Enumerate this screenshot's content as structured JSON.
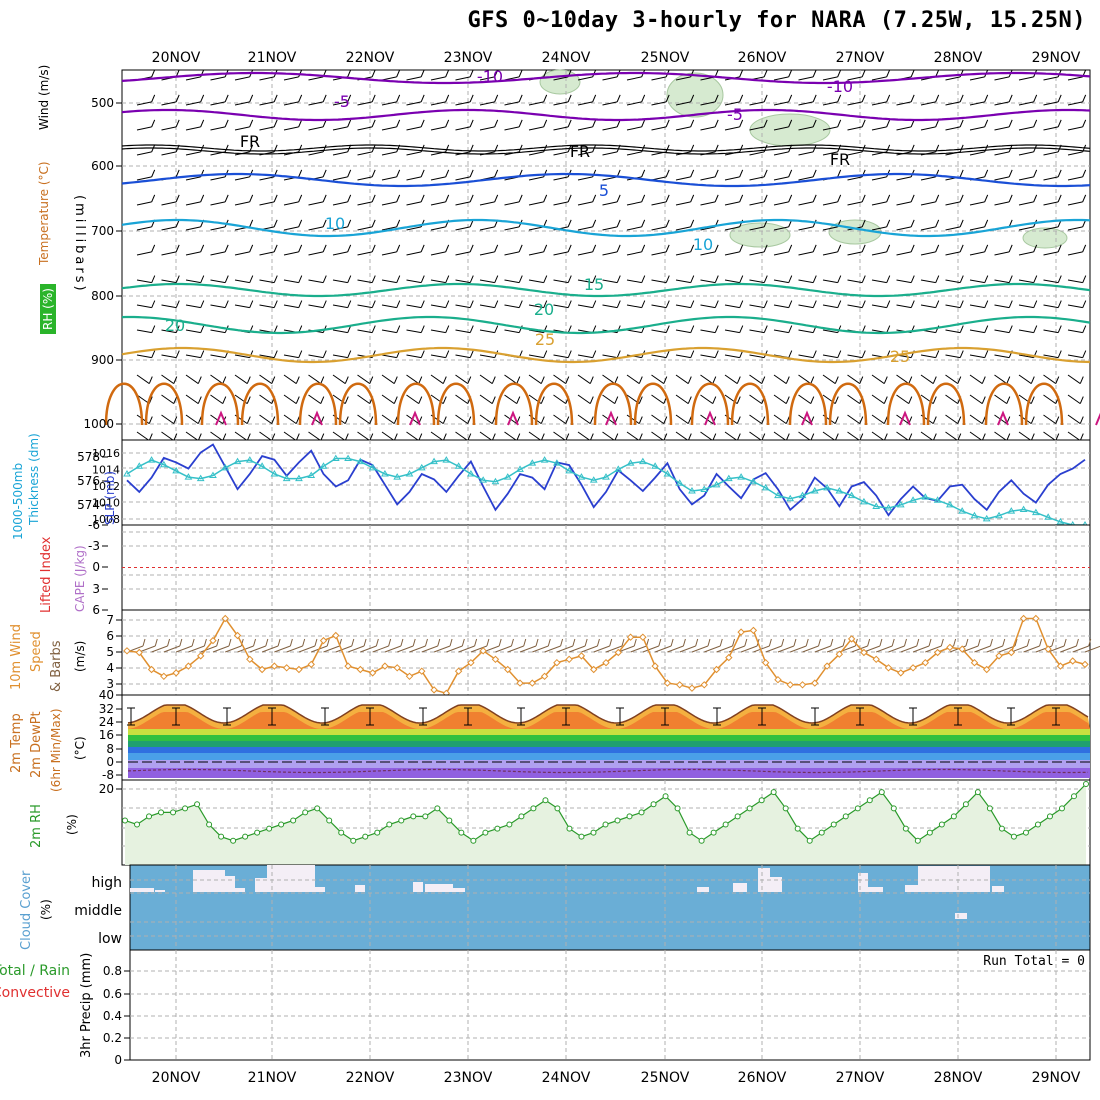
{
  "title": "GFS 0~10day 3-hourly for NARA (7.25W, 15.25N)",
  "colors": {
    "temp_cold": "#7a00b0",
    "temp_mid": "#1a4fd6",
    "temp_cool": "#19a4d6",
    "temp_warm": "#1aae8c",
    "temp_hot": "#d9a030",
    "temp_vhot": "#d06a10",
    "temp_max": "#cc1680",
    "freezing": "#000000",
    "rh_fill": "#d6ead0",
    "rh_line": "#2a9a2a",
    "slp": "#2a3fcf",
    "thickness": "#35c0c8",
    "lifted": "#e03030",
    "wind10": "#e09030",
    "barb": "#806040",
    "cloud_bg": "#6aaed6",
    "cloud_fill": "#f4eef6",
    "grid": "#b0b0b0"
  },
  "dates": [
    "20NOV",
    "21NOV",
    "22NOV",
    "23NOV",
    "24NOV",
    "25NOV",
    "26NOV",
    "27NOV",
    "28NOV",
    "29NOV"
  ],
  "panels": {
    "upper": {
      "ylabel_wind": "Wind (m/s)",
      "ylabel_temp": "Temperature (°C)",
      "ylabel_rh": "RH (%)",
      "ylabel_mb": "(millibars)",
      "yticks": [
        "500",
        "600",
        "700",
        "800",
        "900",
        "1000"
      ],
      "contour_labels": [
        "-10",
        "-10",
        "-5",
        "-5",
        "FR",
        "FR",
        "FR",
        "5",
        "5",
        "10",
        "10",
        "15",
        "20",
        "20",
        "25",
        "25",
        "10",
        "10",
        "30",
        "10",
        "10",
        "30",
        "10"
      ]
    },
    "thickness": {
      "ylabel_left": "1000-500mb",
      "ylabel_left2": "Thickness (dm)",
      "ylabel_right": "SLP (mb)",
      "left_ticks": [
        "578",
        "576",
        "574"
      ],
      "right_ticks": [
        "1016",
        "1014",
        "1012",
        "1010",
        "1008"
      ]
    },
    "lifted": {
      "ylabel_left": "Lifted Index",
      "ylabel_right": "CAPE (J/kg)",
      "ticks": [
        "-6",
        "-3",
        "0",
        "3",
        "6"
      ]
    },
    "wind10": {
      "ylabel_1": "10m Wind",
      "ylabel_2": "Speed",
      "ylabel_3": "& Barbs",
      "ylabel_unit": "(m/s)",
      "ticks": [
        "7",
        "6",
        "5",
        "4",
        "3"
      ]
    },
    "temp2m": {
      "ylabel_1": "2m Temp",
      "ylabel_2": "2m DewPt",
      "ylabel_3": "(6hr Min/Max)",
      "ylabel_unit": "(°C)",
      "ticks": [
        "40",
        "32",
        "24",
        "16",
        "8",
        "0",
        "-8"
      ]
    },
    "rh2m": {
      "ylabel_1": "2m RH",
      "ylabel_unit": "(%)",
      "ticks": [
        "20"
      ]
    },
    "cloud": {
      "ylabel_1": "Cloud Cover",
      "ylabel_unit": "(%)",
      "levels": [
        "high",
        "middle",
        "low"
      ]
    },
    "precip": {
      "ylabel_1": "Total / Rain",
      "ylabel_2": "Convective",
      "ylabel_3": "3hr Precip (mm)",
      "ticks": [
        "0.8",
        "0.6",
        "0.4",
        "0.2",
        "0"
      ],
      "run_total": "Run Total = 0"
    }
  },
  "chart_data": [
    {
      "type": "line",
      "panel": "1000-500mb thickness and SLP",
      "x": [
        "19NOV 15Z",
        "19NOV 18Z",
        "19NOV 21Z",
        "20NOV 00Z",
        "20NOV 03Z",
        "20NOV 06Z",
        "20NOV 09Z",
        "20NOV 12Z",
        "20NOV 15Z",
        "20NOV 18Z",
        "20NOV 21Z",
        "21NOV 00Z",
        "21NOV 03Z",
        "21NOV 06Z",
        "21NOV 09Z",
        "21NOV 12Z",
        "21NOV 15Z",
        "21NOV 18Z",
        "21NOV 21Z",
        "22NOV 00Z",
        "22NOV 03Z",
        "22NOV 06Z",
        "22NOV 09Z",
        "22NOV 12Z",
        "22NOV 15Z",
        "22NOV 18Z",
        "22NOV 21Z",
        "23NOV 00Z",
        "23NOV 03Z",
        "23NOV 06Z",
        "23NOV 09Z",
        "23NOV 12Z",
        "23NOV 15Z",
        "23NOV 18Z",
        "23NOV 21Z",
        "24NOV 00Z",
        "24NOV 03Z",
        "24NOV 06Z",
        "24NOV 09Z",
        "24NOV 12Z",
        "24NOV 15Z",
        "24NOV 18Z",
        "24NOV 21Z",
        "25NOV 00Z",
        "25NOV 03Z",
        "25NOV 06Z",
        "25NOV 09Z",
        "25NOV 12Z",
        "25NOV 15Z",
        "25NOV 18Z",
        "25NOV 21Z",
        "26NOV 00Z",
        "26NOV 03Z",
        "26NOV 06Z",
        "26NOV 09Z",
        "26NOV 12Z",
        "26NOV 15Z",
        "26NOV 18Z",
        "26NOV 21Z",
        "27NOV 00Z",
        "27NOV 03Z",
        "27NOV 06Z",
        "27NOV 09Z",
        "27NOV 12Z",
        "27NOV 15Z",
        "27NOV 18Z",
        "27NOV 21Z",
        "28NOV 00Z",
        "28NOV 03Z",
        "28NOV 06Z",
        "28NOV 09Z",
        "28NOV 12Z",
        "28NOV 15Z",
        "28NOV 18Z",
        "28NOV 21Z",
        "29NOV 00Z",
        "29NOV 03Z",
        "29NOV 06Z",
        "29NOV 09Z"
      ],
      "series": [
        {
          "name": "SLP (mb)",
          "values": [
            1012.5,
            1011.2,
            1012.8,
            1015.0,
            1014.5,
            1013.8,
            1015.6,
            1016.5,
            1014.0,
            1011.5,
            1013.2,
            1015.2,
            1014.8,
            1013.0,
            1014.5,
            1015.8,
            1013.2,
            1011.8,
            1012.5,
            1014.8,
            1014.2,
            1012.0,
            1009.8,
            1011.2,
            1013.2,
            1012.6,
            1011.2,
            1013.0,
            1014.6,
            1011.8,
            1009.2,
            1011.0,
            1013.2,
            1012.8,
            1011.5,
            1014.5,
            1014.2,
            1012.0,
            1009.5,
            1011.2,
            1013.6,
            1012.5,
            1011.3,
            1012.8,
            1014.4,
            1011.5,
            1009.8,
            1010.8,
            1013.2,
            1011.8,
            1010.5,
            1012.6,
            1013.3,
            1011.5,
            1009.2,
            1010.4,
            1012.8,
            1011.6,
            1009.6,
            1011.8,
            1012.3,
            1010.8,
            1008.6,
            1010.4,
            1011.8,
            1010.5,
            1010.2,
            1011.8,
            1012.0,
            1010.4,
            1009.2,
            1011.2,
            1012.5,
            1011.0,
            1010.0,
            1012.0,
            1013.2,
            1013.8,
            1014.8
          ]
        },
        {
          "name": "1000-500mb Thickness (dm)",
          "values": [
            576.8,
            577.3,
            577.7,
            577.4,
            577.0,
            576.6,
            576.5,
            576.7,
            577.2,
            577.6,
            577.7,
            577.3,
            576.8,
            576.5,
            576.5,
            576.7,
            577.3,
            577.8,
            577.8,
            577.6,
            577.2,
            576.8,
            576.6,
            576.8,
            577.2,
            577.6,
            577.7,
            577.3,
            576.8,
            576.4,
            576.3,
            576.6,
            577.1,
            577.5,
            577.7,
            577.5,
            577.0,
            576.6,
            576.4,
            576.6,
            577.1,
            577.5,
            577.6,
            577.3,
            576.8,
            576.2,
            575.7,
            575.8,
            576.1,
            576.5,
            576.6,
            576.3,
            575.9,
            575.4,
            575.2,
            575.4,
            575.7,
            575.9,
            575.7,
            575.4,
            575.0,
            574.7,
            574.6,
            574.8,
            575.1,
            575.3,
            575.1,
            574.8,
            574.4,
            574.1,
            573.9,
            574.1,
            574.4,
            574.5,
            574.3,
            574.0,
            573.7,
            573.5,
            573.5
          ]
        }
      ],
      "ylim_left": [
        573.5,
        579
      ],
      "ylim_right": [
        1007.5,
        1017
      ]
    },
    {
      "type": "line",
      "panel": "10m Wind Speed",
      "series": [
        {
          "name": "10m Wind Speed (m/s)",
          "values": [
            5.1,
            5.0,
            4.0,
            3.6,
            3.8,
            4.2,
            4.8,
            5.7,
            7.0,
            6.0,
            4.6,
            4.0,
            4.2,
            4.1,
            4.0,
            4.3,
            5.7,
            6.0,
            4.2,
            4.0,
            3.8,
            4.2,
            4.1,
            3.6,
            3.9,
            2.8,
            2.6,
            3.9,
            4.4,
            5.1,
            4.6,
            4.0,
            3.2,
            3.2,
            3.6,
            4.4,
            4.6,
            4.8,
            4.0,
            4.4,
            5.0,
            5.9,
            5.9,
            4.2,
            3.2,
            3.1,
            2.9,
            3.1,
            4.0,
            4.7,
            6.2,
            6.3,
            4.4,
            3.4,
            3.1,
            3.1,
            3.2,
            4.2,
            4.9,
            5.8,
            5.0,
            4.6,
            4.1,
            3.8,
            4.1,
            4.4,
            5.0,
            5.3,
            5.2,
            4.4,
            4.0,
            4.8,
            5.0,
            7.0,
            7.0,
            5.2,
            4.2,
            4.5,
            4.3
          ]
        }
      ],
      "ylim": [
        2.5,
        7.5
      ]
    },
    {
      "type": "line",
      "panel": "2m RH",
      "series": [
        {
          "name": "2m RH (%)",
          "values": [
            11,
            10,
            12,
            13,
            13,
            14,
            15,
            10,
            7,
            6,
            7,
            8,
            9,
            10,
            11,
            13,
            14,
            11,
            8,
            6,
            7,
            8,
            10,
            11,
            12,
            12,
            14,
            11,
            8,
            6,
            8,
            9,
            10,
            12,
            14,
            16,
            14,
            9,
            7,
            8,
            10,
            11,
            12,
            13,
            15,
            17,
            14,
            8,
            6,
            8,
            10,
            12,
            14,
            16,
            18,
            14,
            9,
            6,
            8,
            10,
            12,
            14,
            16,
            18,
            14,
            9,
            6,
            8,
            10,
            12,
            15,
            18,
            14,
            9,
            7,
            8,
            10,
            12,
            14,
            17,
            20
          ]
        }
      ],
      "ylim": [
        0,
        21
      ]
    },
    {
      "type": "line",
      "panel": "3hr Precip",
      "series": [
        {
          "name": "Total / Rain",
          "values": [
            0,
            0,
            0,
            0,
            0,
            0,
            0,
            0,
            0,
            0
          ]
        },
        {
          "name": "Convective",
          "values": [
            0,
            0,
            0,
            0,
            0,
            0,
            0,
            0,
            0,
            0
          ]
        }
      ],
      "ylim": [
        0,
        1
      ]
    }
  ]
}
